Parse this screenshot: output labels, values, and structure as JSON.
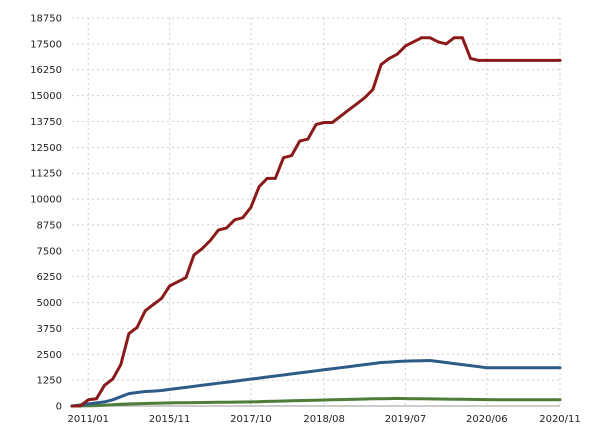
{
  "chart_data": {
    "type": "line",
    "title": "",
    "xlabel": "",
    "ylabel": "",
    "ylim": [
      0,
      18750
    ],
    "yticks": [
      0,
      1250,
      2500,
      3750,
      5000,
      6250,
      7500,
      8750,
      10000,
      11250,
      12500,
      13750,
      15000,
      16250,
      17500,
      18750
    ],
    "xtick_labels": [
      "2011/01",
      "2015/11",
      "2017/10",
      "2018/08",
      "2019/07",
      "2020/06",
      "2020/11"
    ],
    "xtick_positions": [
      2,
      12,
      22,
      31,
      41,
      51,
      60
    ],
    "grid": true,
    "legend": "none",
    "x_index": [
      0,
      1,
      2,
      3,
      4,
      5,
      6,
      7,
      8,
      9,
      10,
      11,
      12,
      13,
      14,
      15,
      16,
      17,
      18,
      19,
      20,
      21,
      22,
      23,
      24,
      25,
      26,
      27,
      28,
      29,
      30,
      31,
      32,
      33,
      34,
      35,
      36,
      37,
      38,
      39,
      40,
      41,
      42,
      43,
      44,
      45,
      46,
      47,
      48,
      49,
      50,
      51,
      52,
      53,
      54,
      55,
      56,
      57,
      58,
      59,
      60
    ],
    "series": [
      {
        "color": "#8b1a1a",
        "values": [
          0,
          0,
          300,
          350,
          1000,
          1300,
          2000,
          3500,
          3800,
          4600,
          4900,
          5200,
          5800,
          6000,
          6200,
          7300,
          7600,
          8000,
          8500,
          8600,
          9000,
          9100,
          9600,
          10600,
          11000,
          11000,
          12000,
          12100,
          12800,
          12900,
          13600,
          13700,
          13700,
          14000,
          14300,
          14600,
          14900,
          15300,
          16500,
          16800,
          17000,
          17400,
          17600,
          17800,
          17800,
          17600,
          17500,
          17800,
          17800,
          16800,
          16700,
          16700,
          16700,
          16700,
          16700,
          16700,
          16700,
          16700,
          16700,
          16700,
          16700
        ]
      },
      {
        "color": "#2e5b87",
        "values": [
          0,
          50,
          100,
          150,
          200,
          300,
          450,
          600,
          650,
          700,
          720,
          750,
          800,
          850,
          900,
          950,
          1000,
          1050,
          1100,
          1150,
          1200,
          1250,
          1300,
          1350,
          1400,
          1450,
          1500,
          1550,
          1600,
          1650,
          1700,
          1750,
          1800,
          1850,
          1900,
          1950,
          2000,
          2050,
          2100,
          2120,
          2150,
          2170,
          2180,
          2190,
          2200,
          2150,
          2100,
          2050,
          2000,
          1950,
          1900,
          1850,
          1850,
          1850,
          1850,
          1850,
          1850,
          1850,
          1850,
          1850,
          1850
        ]
      },
      {
        "color": "#4e7d3a",
        "values": [
          0,
          5,
          10,
          20,
          40,
          60,
          80,
          100,
          110,
          120,
          130,
          140,
          150,
          155,
          160,
          165,
          170,
          175,
          180,
          185,
          190,
          195,
          200,
          210,
          220,
          230,
          240,
          250,
          260,
          270,
          280,
          290,
          300,
          310,
          320,
          330,
          340,
          350,
          355,
          360,
          365,
          360,
          355,
          350,
          345,
          340,
          335,
          330,
          325,
          320,
          315,
          310,
          305,
          300,
          300,
          300,
          300,
          300,
          300,
          300,
          300
        ]
      }
    ]
  }
}
